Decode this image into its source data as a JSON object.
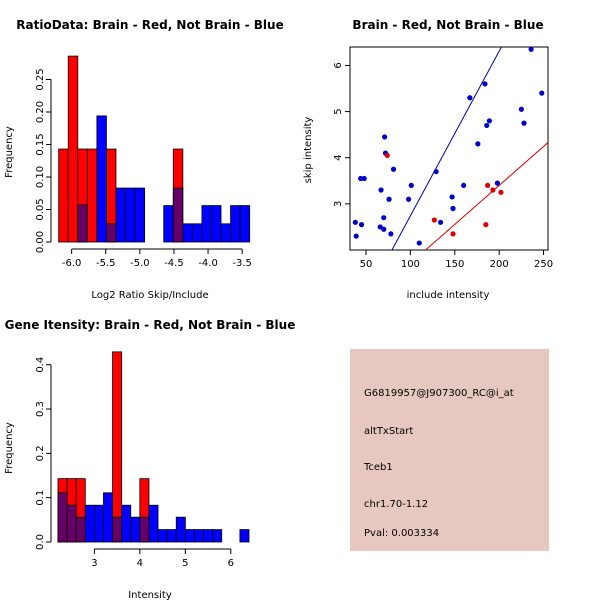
{
  "chart_data": [
    {
      "id": "ratio_hist",
      "type": "bar",
      "title": "RatioData: Brain - Red, Not Brain - Blue",
      "xlabel": "Log2 Ratio Skip/Include",
      "ylabel": "Frequency",
      "xlim": [
        -6.2,
        -3.4
      ],
      "ylim": [
        0,
        0.3
      ],
      "bin_width": 0.14,
      "bin_start": -6.19,
      "xticks": [
        -6.0,
        -5.5,
        -5.0,
        -4.5,
        -4.0,
        -3.5
      ],
      "xtick_labels": [
        "-6.0",
        "-5.5",
        "-5.0",
        "-4.5",
        "-4.0",
        "-3.5"
      ],
      "yticks": [
        0.0,
        0.05,
        0.1,
        0.15,
        0.2,
        0.25
      ],
      "ytick_labels": [
        "0.00",
        "0.05",
        "0.10",
        "0.15",
        "0.20",
        "0.25"
      ],
      "series": [
        {
          "name": "Brain",
          "color": "#ff0000",
          "values": [
            0.143,
            0.286,
            0.143,
            0.143,
            0,
            0.143,
            0,
            0,
            0,
            0,
            0,
            0,
            0.143,
            0,
            0,
            0,
            0,
            0,
            0,
            0
          ]
        },
        {
          "name": "Not Brain",
          "color": "#0000ff",
          "values": [
            0,
            0,
            0.057,
            0,
            0.194,
            0.028,
            0.083,
            0.083,
            0.083,
            0,
            0,
            0.056,
            0.083,
            0.028,
            0.028,
            0.056,
            0.056,
            0.028,
            0.056,
            0.056
          ]
        }
      ],
      "overlap_color": "#660066"
    },
    {
      "id": "intensity_scatter",
      "type": "scatter",
      "title": "Brain - Red, Not Brain - Blue",
      "xlabel": "include intensity",
      "ylabel": "skip intensity",
      "xlim": [
        32,
        255
      ],
      "ylim": [
        2.0,
        6.4
      ],
      "xticks": [
        50,
        100,
        150,
        200,
        250
      ],
      "xtick_labels": [
        "50",
        "100",
        "150",
        "200",
        "250"
      ],
      "yticks": [
        3,
        4,
        5,
        6
      ],
      "ytick_labels": [
        "3",
        "4",
        "5",
        "6"
      ],
      "series": [
        {
          "name": "Not Brain",
          "color": "#0000cc",
          "x": [
            38,
            39,
            45,
            44,
            48,
            66,
            67,
            70,
            70,
            71,
            72,
            76,
            78,
            81,
            110,
            98,
            101,
            129,
            134,
            147,
            148,
            160,
            167,
            176,
            184,
            186,
            189,
            198,
            225,
            228,
            236,
            248
          ],
          "y": [
            2.6,
            2.3,
            2.55,
            3.55,
            3.55,
            2.5,
            3.3,
            2.7,
            2.45,
            4.45,
            4.1,
            3.1,
            2.35,
            3.75,
            2.15,
            3.1,
            3.4,
            3.7,
            2.6,
            3.15,
            2.9,
            3.4,
            5.3,
            4.3,
            5.6,
            4.7,
            4.8,
            3.45,
            5.05,
            4.75,
            6.35,
            5.4
          ]
        },
        {
          "name": "Brain",
          "color": "#dd0000",
          "x": [
            74,
            127,
            148,
            185,
            187,
            193,
            202
          ],
          "y": [
            4.05,
            2.65,
            2.35,
            2.55,
            3.4,
            3.3,
            3.25
          ]
        }
      ],
      "reference_lines": [
        {
          "name": "blue-diagonal",
          "color": "#000099",
          "slope": 0.0357,
          "intercept": -0.83
        },
        {
          "name": "red-diagonal",
          "color": "#dd0000",
          "slope": 0.0169,
          "intercept": 0.02
        }
      ]
    },
    {
      "id": "gene_intensity_hist",
      "type": "bar",
      "title": "Gene Itensity: Brain - Red, Not Brain - Blue",
      "xlabel": "Intensity",
      "ylabel": "Frequency",
      "xlim": [
        2.2,
        6.4
      ],
      "ylim": [
        0,
        0.44
      ],
      "bin_width": 0.2,
      "bin_start": 2.2,
      "xticks": [
        3,
        4,
        5,
        6
      ],
      "xtick_labels": [
        "3",
        "4",
        "5",
        "6"
      ],
      "yticks": [
        0.0,
        0.1,
        0.2,
        0.3,
        0.4
      ],
      "ytick_labels": [
        "0.0",
        "0.1",
        "0.2",
        "0.3",
        "0.4"
      ],
      "series": [
        {
          "name": "Brain",
          "color": "#ff0000",
          "values": [
            0.143,
            0.143,
            0.143,
            0,
            0,
            0,
            0.429,
            0,
            0,
            0.143,
            0,
            0,
            0,
            0,
            0,
            0,
            0,
            0,
            0,
            0,
            0
          ]
        },
        {
          "name": "Not Brain",
          "color": "#0000ff",
          "values": [
            0.111,
            0.083,
            0.056,
            0.083,
            0.083,
            0.111,
            0.056,
            0.083,
            0.056,
            0.056,
            0.083,
            0.028,
            0.028,
            0.056,
            0.028,
            0.028,
            0.028,
            0.028,
            0,
            0,
            0.028
          ]
        }
      ],
      "overlap_color": "#660066"
    }
  ],
  "info_panel": {
    "probe": "G6819957@J907300_RC@i_at",
    "event": "altTxStart",
    "gene": "Tceb1",
    "location": "chr1.70-1.12",
    "pval": "Pval: 0.003334",
    "background": "#e6c8c0",
    "pval_color": "#990000"
  }
}
